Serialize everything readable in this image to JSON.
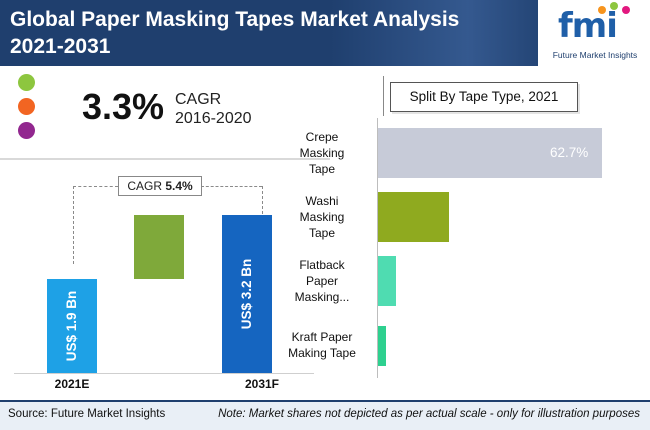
{
  "header": {
    "title_line1": "Global Paper Masking Tapes Market Analysis",
    "title_line2": "2021-2031",
    "brand_short": "fmi",
    "brand_name": "Future Market Insights"
  },
  "cagr_hist": {
    "value": "3.3%",
    "label": "CAGR",
    "period": "2016-2020"
  },
  "legend_dots": [
    "#8dc63f",
    "#f26522",
    "#92278f"
  ],
  "colors": {
    "header": "#1f3f6e",
    "start_bar": "#1ea1e6",
    "end_bar": "#1565c0",
    "growth_bar": "#7fa93a"
  },
  "chart_data": [
    {
      "type": "bar",
      "categories": [
        "2021E",
        "2031F"
      ],
      "values": [
        1.9,
        3.2
      ],
      "value_labels": [
        "US$ 1.9 Bn",
        "US$ 3.2 Bn"
      ],
      "cagr_label": "CAGR",
      "cagr_value": "5.4%"
    },
    {
      "type": "bar",
      "orientation": "horizontal",
      "title": "Split By Tape Type, 2021",
      "categories": [
        "Crepe Masking Tape",
        "Washi Masking Tape",
        "Flatback Paper Masking...",
        "Kraft Paper Making Tape"
      ],
      "category_lines": [
        [
          "Crepe",
          "Masking",
          "Tape"
        ],
        [
          "Washi",
          "Masking",
          "Tape"
        ],
        [
          "Flatback",
          "Paper",
          "Masking..."
        ],
        [
          "Kraft Paper",
          "Making Tape"
        ]
      ],
      "values": [
        62.7,
        20.0,
        5.0,
        2.0
      ],
      "shown_label": "62.7%",
      "colors": [
        "#c7cbd8",
        "#8faa1f",
        "#4fdcb1",
        "#2ed08f"
      ]
    }
  ],
  "footer": {
    "source": "Source: Future Market Insights",
    "note": "Note: Market shares not depicted as per actual scale - only for illustration purposes"
  }
}
